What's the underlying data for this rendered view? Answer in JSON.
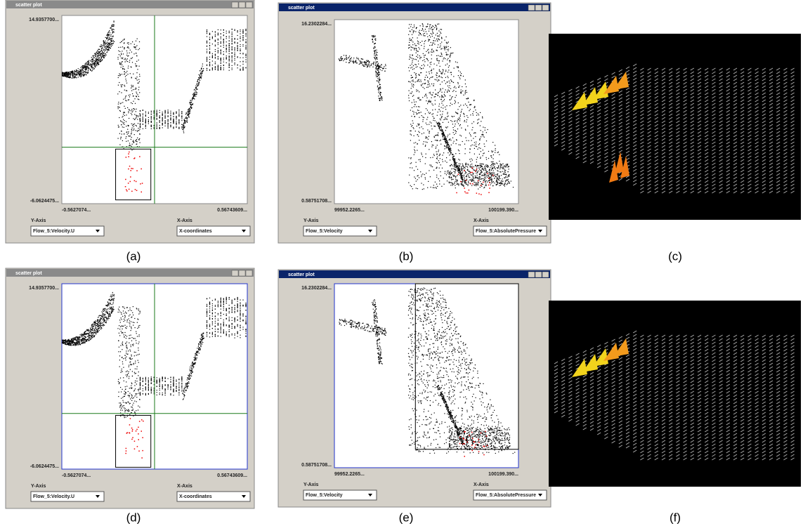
{
  "panels": [
    {
      "caption": "(a)",
      "window_title": "scatter plot",
      "y_max": "14.9357700...",
      "y_min": "-6.0624475...",
      "x_min": "-0.5627074...",
      "x_max": "0.56743609...",
      "y_axis_label": "Y-Axis",
      "x_axis_label": "X-Axis",
      "y_select": "Flow_5:Velocity.U",
      "x_select": "X-coordinates"
    },
    {
      "caption": "(b)",
      "window_title": "scatter plot",
      "y_max": "16.2302284...",
      "y_min": "0.58751708...",
      "x_min": "99952.2265...",
      "x_max": "100199.390...",
      "y_axis_label": "Y-Axis",
      "x_axis_label": "X-Axis",
      "y_select": "Flow_5:Velocity",
      "x_select": "Flow_5:AbsolutePressure"
    },
    {
      "caption": "(d)",
      "window_title": "scatter plot",
      "y_max": "14.9357700...",
      "y_min": "-6.0624475...",
      "x_min": "-0.5627074...",
      "x_max": "0.56743609...",
      "y_axis_label": "Y-Axis",
      "x_axis_label": "X-Axis",
      "y_select": "Flow_5:Velocity.U",
      "x_select": "X-coordinates"
    },
    {
      "caption": "(e)",
      "window_title": "scatter plot",
      "y_max": "16.2302284...",
      "y_min": "0.58751708...",
      "x_min": "99952.2265...",
      "x_max": "100199.390...",
      "y_axis_label": "Y-Axis",
      "x_axis_label": "X-Axis",
      "y_select": "Flow_5:Velocity",
      "x_select": "Flow_5:AbsolutePressure"
    }
  ],
  "renders": [
    {
      "caption": "(c)"
    },
    {
      "caption": "(f)"
    }
  ]
}
